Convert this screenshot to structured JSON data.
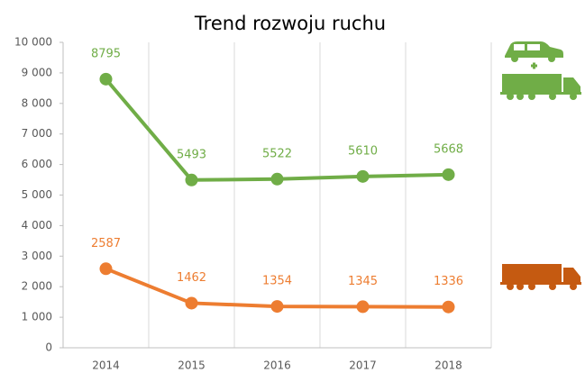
{
  "chart_data": {
    "type": "line",
    "title": "Trend rozwoju ruchu",
    "categories": [
      "2014",
      "2015",
      "2016",
      "2017",
      "2018"
    ],
    "series": [
      {
        "color": "#70ad47",
        "values": [
          8795,
          5493,
          5522,
          5610,
          5668
        ]
      },
      {
        "color": "#ed7d31",
        "values": [
          2587,
          1462,
          1354,
          1345,
          1336
        ]
      }
    ],
    "ylim": [
      0,
      10000
    ],
    "yticks": [
      0,
      {
        "value": 1000,
        "label": "1 000"
      },
      {
        "value": 2000,
        "label": "2 000"
      },
      {
        "value": 3000,
        "label": "3 000"
      },
      {
        "value": 4000,
        "label": "4 000"
      },
      {
        "value": 5000,
        "label": "5 000"
      },
      {
        "value": 6000,
        "label": "6 000"
      },
      {
        "value": 7000,
        "label": "7 000"
      },
      {
        "value": 8000,
        "label": "8 000"
      },
      {
        "value": 9000,
        "label": "9 000"
      },
      {
        "value": 10000,
        "label": "10 000"
      }
    ],
    "grid": false
  }
}
